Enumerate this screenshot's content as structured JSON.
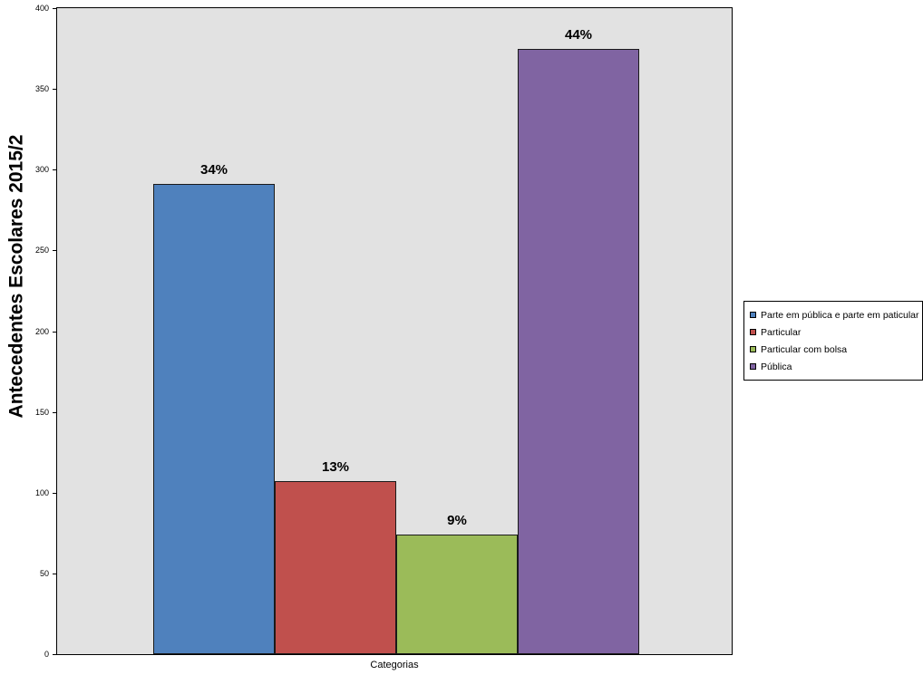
{
  "chart_data": {
    "type": "bar",
    "title": "",
    "ylabel": "Antecedentes Escolares 2015/2",
    "xlabel": "Categorias",
    "ylim": [
      0,
      400
    ],
    "yticks": [
      0,
      50,
      100,
      150,
      200,
      250,
      300,
      350,
      400
    ],
    "grid": false,
    "legend_position": "right",
    "plot_background": "#e2e2e2",
    "categories": [
      "Parte em pública e parte em paticular",
      "Particular",
      "Particular com bolsa",
      "Pública"
    ],
    "series": [
      {
        "name": "Parte em pública e parte em paticular",
        "value": 291,
        "percent_label": "34%",
        "color": "#4f81bd"
      },
      {
        "name": "Particular",
        "value": 107,
        "percent_label": "13%",
        "color": "#c0504d"
      },
      {
        "name": "Particular com bolsa",
        "value": 74,
        "percent_label": "9%",
        "color": "#9bbb59"
      },
      {
        "name": "Pública",
        "value": 375,
        "percent_label": "44%",
        "color": "#8064a2"
      }
    ]
  }
}
